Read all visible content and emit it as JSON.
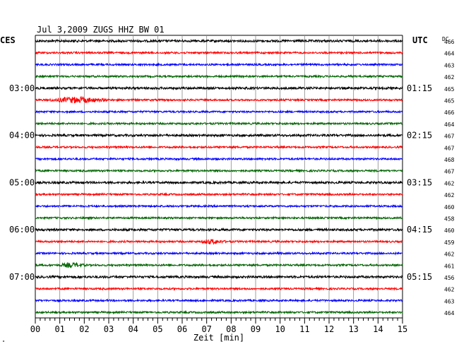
{
  "title": "Jul 3,2009   ZUGS HHZ BW 01",
  "left_tz": "CES",
  "right_tz": "UTC",
  "dc_label": "DC",
  "xlabel": "Zeit [min]",
  "corner_mark": "\"",
  "colors": {
    "black": "#000000",
    "red": "#ff0000",
    "blue": "#0000ff",
    "green": "#006400",
    "grid": "#888888"
  },
  "chart_data": {
    "type": "line",
    "title": "Jul 3,2009   ZUGS HHZ BW 01",
    "xlabel": "Zeit [min]",
    "xlim": [
      0,
      15
    ],
    "x_ticks": [
      "00",
      "01",
      "02",
      "03",
      "04",
      "05",
      "06",
      "07",
      "08",
      "09",
      "10",
      "11",
      "12",
      "13",
      "14",
      "15"
    ],
    "color_cycle": [
      "black",
      "red",
      "blue",
      "green"
    ],
    "left_hour_labels": [
      {
        "label": "03:00",
        "trace": 4
      },
      {
        "label": "04:00",
        "trace": 8
      },
      {
        "label": "05:00",
        "trace": 12
      },
      {
        "label": "06:00",
        "trace": 16
      },
      {
        "label": "07:00",
        "trace": 20
      }
    ],
    "right_hour_labels": [
      {
        "label": "01:15",
        "trace": 4
      },
      {
        "label": "02:15",
        "trace": 8
      },
      {
        "label": "03:15",
        "trace": 12
      },
      {
        "label": "04:15",
        "trace": 16
      },
      {
        "label": "05:15",
        "trace": 20
      }
    ],
    "dc_offsets": [
      466,
      464,
      463,
      462,
      465,
      465,
      466,
      464,
      467,
      467,
      468,
      467,
      462,
      462,
      460,
      458,
      460,
      459,
      462,
      461,
      456,
      462,
      463,
      464
    ],
    "events": [
      {
        "trace": 5,
        "start_min": 0.5,
        "end_min": 3.0,
        "peak_min": 1.7,
        "amplitude": 3.5
      },
      {
        "trace": 17,
        "start_min": 6.8,
        "end_min": 8.0,
        "peak_min": 7.2,
        "amplitude": 2.5
      },
      {
        "trace": 19,
        "start_min": 1.0,
        "end_min": 2.2,
        "peak_min": 1.5,
        "amplitude": 2.5
      }
    ]
  }
}
